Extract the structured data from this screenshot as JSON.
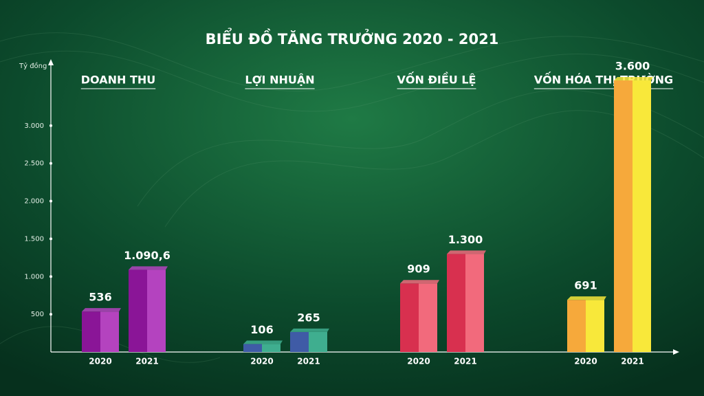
{
  "chart_data": {
    "type": "bar",
    "title": "BIỂU ĐỒ TĂNG TRƯỞNG 2020 - 2021",
    "y_label": "Tỷ đồng",
    "categories": [
      "DOANH THU",
      "LỢI NHUẬN",
      "VỐN ĐIỀU LỆ",
      "VỐN HÓA THỊ TRƯỜNG"
    ],
    "series": [
      {
        "name": "2020",
        "values": [
          536,
          106,
          909,
          691
        ],
        "value_labels": [
          "536",
          "106",
          "909",
          "691"
        ]
      },
      {
        "name": "2021",
        "values": [
          1090.6,
          265,
          1300,
          3600
        ],
        "value_labels": [
          "1.090,6",
          "265",
          "1.300",
          "3.600"
        ]
      }
    ],
    "colors": [
      [
        "#8a1597",
        "#b443bf"
      ],
      [
        "#3f5ba6",
        "#3fae8f"
      ],
      [
        "#d8304f",
        "#f26a7c"
      ],
      [
        "#f6a93b",
        "#f8e83a"
      ]
    ],
    "ylim": [
      0,
      3800
    ],
    "yticks": [
      500,
      {
        "value": 1000,
        "label": "1.000"
      },
      {
        "value": 1500,
        "label": "1.500"
      },
      {
        "value": 2000,
        "label": "2.000"
      },
      {
        "value": 2500,
        "label": "2.500"
      },
      {
        "value": 3000,
        "label": "3.000"
      }
    ]
  }
}
